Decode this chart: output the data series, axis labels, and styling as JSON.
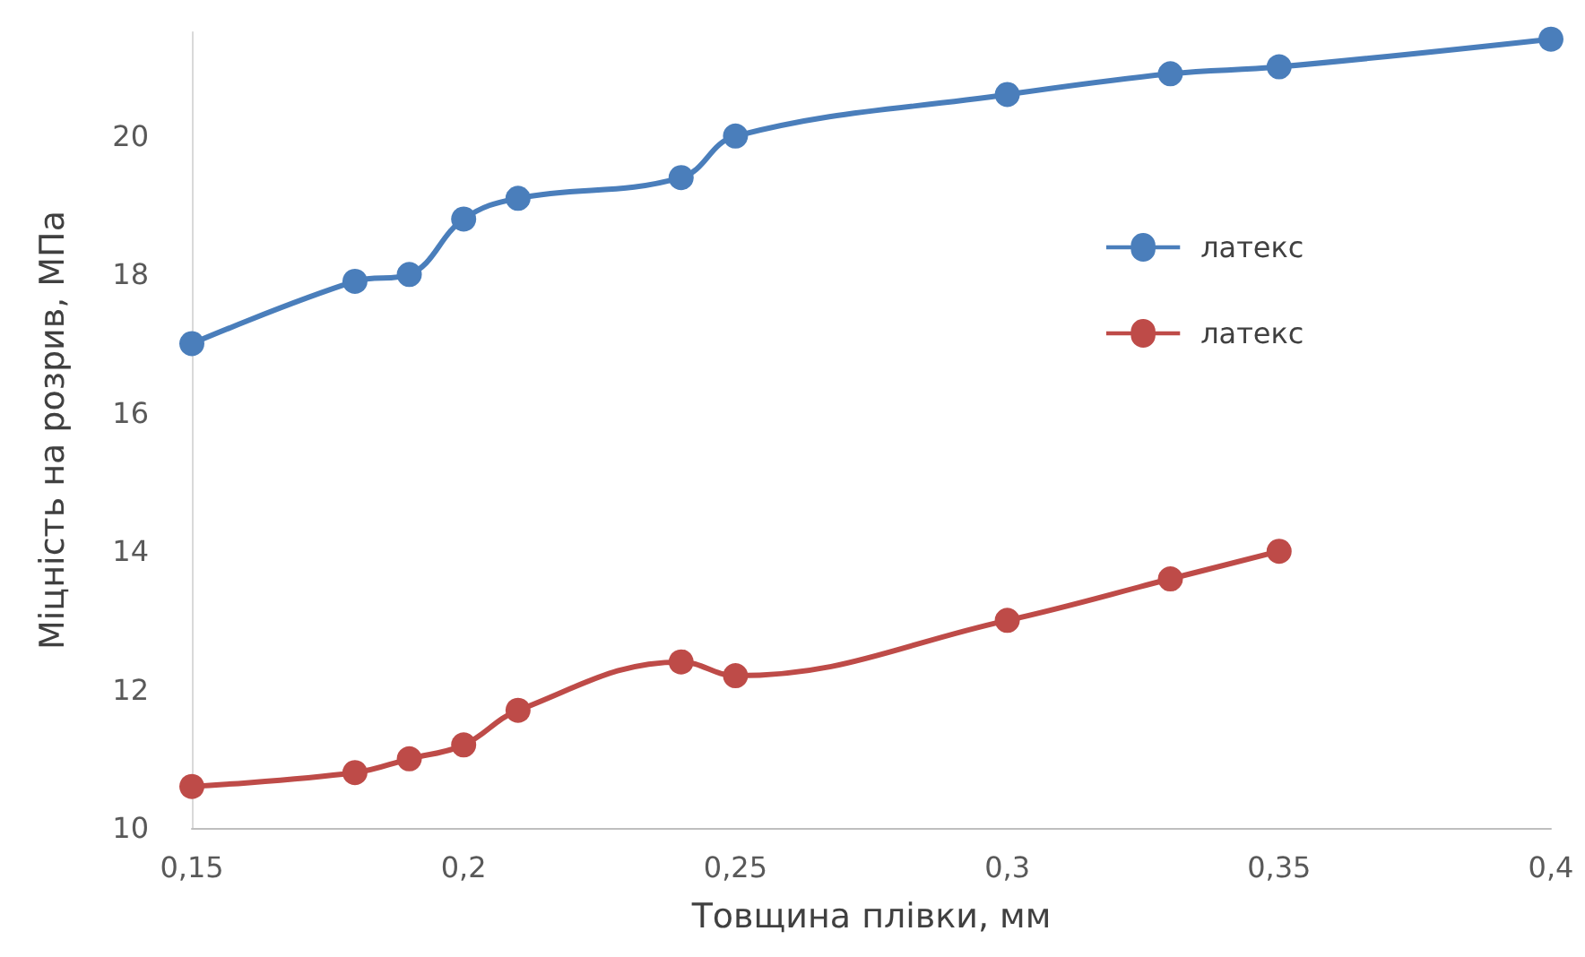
{
  "chart_data": {
    "type": "line",
    "xlabel": "Товщина плівки, мм",
    "ylabel": "Міцність на розрив, МПа",
    "x": [
      0.15,
      0.18,
      0.19,
      0.2,
      0.21,
      0.24,
      0.25,
      0.3,
      0.33,
      0.35,
      0.4
    ],
    "series": [
      {
        "name": "латекс",
        "color": "#4a7ebb",
        "values": [
          17,
          17.9,
          18,
          18.8,
          19.1,
          19.4,
          20,
          20.6,
          20.9,
          21,
          21.4
        ]
      },
      {
        "name": "латекс",
        "color": "#be4b48",
        "values": [
          10.6,
          10.8,
          11,
          11.2,
          11.7,
          12.4,
          12.2,
          13,
          13.6,
          14,
          null
        ]
      }
    ],
    "xlim": [
      0.15,
      0.4
    ],
    "xticks": [
      {
        "value": 0.15,
        "label": "0,15"
      },
      {
        "value": 0.2,
        "label": "0,2"
      },
      {
        "value": 0.25,
        "label": "0,25"
      },
      {
        "value": 0.3,
        "label": "0,3"
      },
      {
        "value": 0.35,
        "label": "0,35"
      },
      {
        "value": 0.4,
        "label": "0,4"
      }
    ],
    "ylim": [
      10,
      21.5
    ],
    "yticks": [
      10,
      12,
      14,
      16,
      18,
      20
    ],
    "grid": false,
    "legend": "right",
    "marker": "circle",
    "line_style": "solid"
  }
}
